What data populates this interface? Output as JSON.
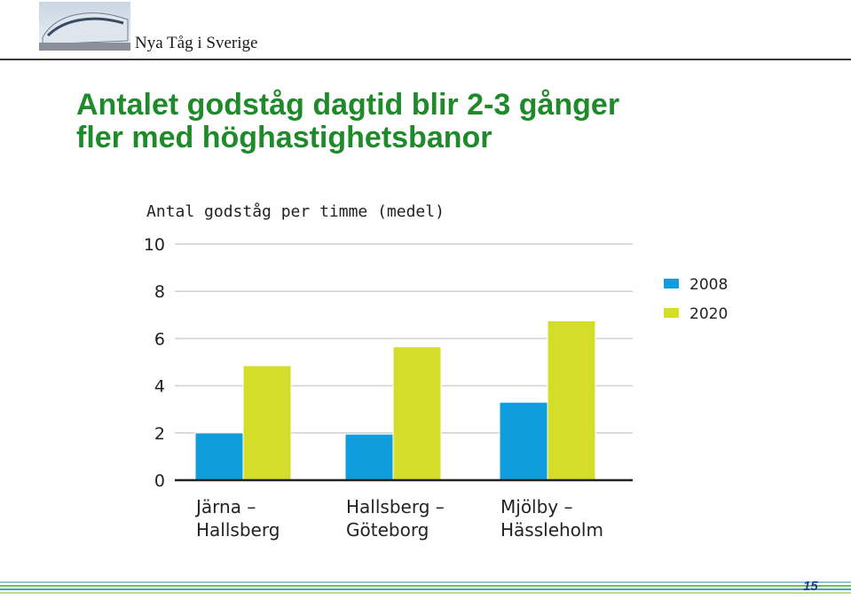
{
  "header": {
    "brand": "Nya Tåg i Sverige",
    "logo": "train-photo"
  },
  "slide": {
    "title_lines": [
      "Antalet godståg dagtid blir 2-3 gånger",
      "fler med höghastighetsbanor"
    ],
    "page_number": "15"
  },
  "chart_data": {
    "type": "bar",
    "title": "Antal godståg per timme (medel)",
    "categories": [
      [
        "Järna –",
        "Hallsberg"
      ],
      [
        "Hallsberg –",
        "Göteborg"
      ],
      [
        "Mjölby –",
        "Hässleholm"
      ]
    ],
    "series": [
      {
        "name": "2008",
        "values": [
          2.0,
          1.95,
          3.3
        ],
        "color": "#0f9ddd"
      },
      {
        "name": "2020",
        "values": [
          4.85,
          5.65,
          6.75
        ],
        "color": "#d4dd2a"
      }
    ],
    "ylim": [
      0,
      10
    ],
    "yticks": [
      "0",
      "2",
      "4",
      "6",
      "8",
      "10"
    ],
    "grid": true,
    "legend_position": "right"
  }
}
